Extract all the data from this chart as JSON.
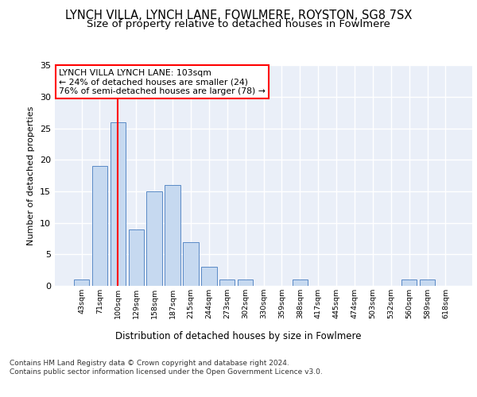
{
  "title1": "LYNCH VILLA, LYNCH LANE, FOWLMERE, ROYSTON, SG8 7SX",
  "title2": "Size of property relative to detached houses in Fowlmere",
  "xlabel": "Distribution of detached houses by size in Fowlmere",
  "ylabel": "Number of detached properties",
  "categories": [
    "43sqm",
    "71sqm",
    "100sqm",
    "129sqm",
    "158sqm",
    "187sqm",
    "215sqm",
    "244sqm",
    "273sqm",
    "302sqm",
    "330sqm",
    "359sqm",
    "388sqm",
    "417sqm",
    "445sqm",
    "474sqm",
    "503sqm",
    "532sqm",
    "560sqm",
    "589sqm",
    "618sqm"
  ],
  "values": [
    1,
    19,
    26,
    9,
    15,
    16,
    7,
    3,
    1,
    1,
    0,
    0,
    1,
    0,
    0,
    0,
    0,
    0,
    1,
    1,
    0
  ],
  "bar_color": "#c6d9f0",
  "bar_edge_color": "#5a8ac6",
  "red_line_index": 2,
  "annotation_text": "LYNCH VILLA LYNCH LANE: 103sqm\n← 24% of detached houses are smaller (24)\n76% of semi-detached houses are larger (78) →",
  "footer_line1": "Contains HM Land Registry data © Crown copyright and database right 2024.",
  "footer_line2": "Contains public sector information licensed under the Open Government Licence v3.0.",
  "ylim": [
    0,
    35
  ],
  "yticks": [
    0,
    5,
    10,
    15,
    20,
    25,
    30,
    35
  ],
  "bg_color": "#eaeff8",
  "grid_color": "#ffffff",
  "title1_fontsize": 10.5,
  "title2_fontsize": 9.5
}
